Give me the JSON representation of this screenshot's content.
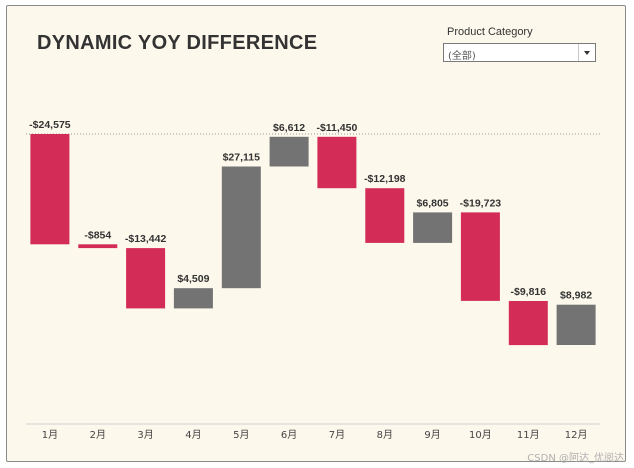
{
  "chart_data": {
    "type": "bar",
    "subtype": "waterfall",
    "title": "DYNAMIC YOY DIFFERENCE",
    "categories": [
      "1月",
      "2月",
      "3月",
      "4月",
      "5月",
      "6月",
      "7月",
      "8月",
      "9月",
      "10月",
      "11月",
      "12月"
    ],
    "values": [
      -24575,
      -854,
      -13442,
      4509,
      27115,
      6612,
      -11450,
      -12198,
      6805,
      -19723,
      -9816,
      8982
    ],
    "value_labels": [
      "-$24,575",
      "-$854",
      "-$13,442",
      "$4,509",
      "$27,115",
      "$6,612",
      "-$11,450",
      "-$12,198",
      "$6,805",
      "-$19,723",
      "-$9,816",
      "$8,982"
    ],
    "running_start": 0,
    "reference_line": 0,
    "ylim": [
      -62000,
      8000
    ],
    "xlabel": "",
    "ylabel": "",
    "colors": {
      "negative": "#d32c56",
      "positive": "#737373",
      "reference": "#9a9a9a"
    }
  },
  "filter": {
    "label": "Product Category",
    "selected": "(全部)"
  },
  "watermark": "CSDN @阿达_优阅达"
}
